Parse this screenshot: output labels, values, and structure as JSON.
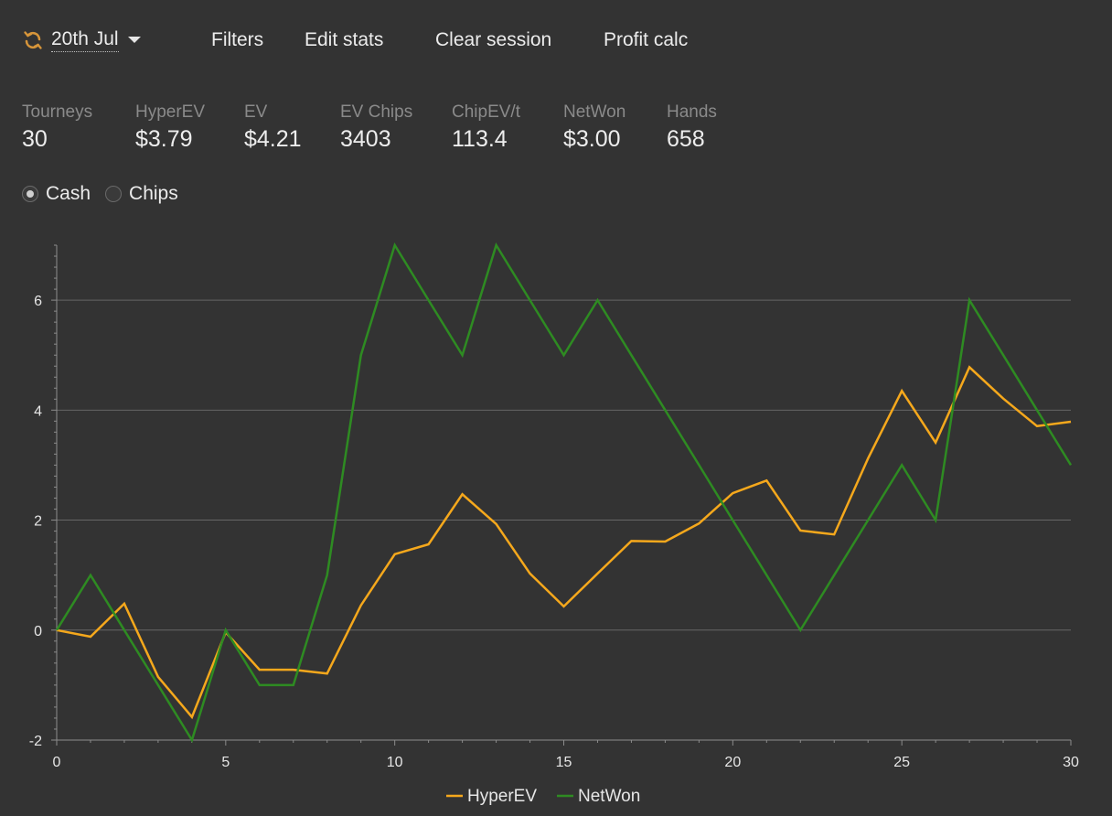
{
  "toolbar": {
    "date": "20th Jul",
    "filters": "Filters",
    "edit_stats": "Edit stats",
    "clear_session": "Clear session",
    "profit_calc": "Profit calc",
    "refresh_icon": "refresh-icon",
    "dropdown_icon": "chevron-down-icon"
  },
  "stats": [
    {
      "label": "Tourneys",
      "value": "30"
    },
    {
      "label": "HyperEV",
      "value": "$3.79"
    },
    {
      "label": "EV",
      "value": "$4.21"
    },
    {
      "label": "EV Chips",
      "value": "3403"
    },
    {
      "label": "ChipEV/t",
      "value": "113.4"
    },
    {
      "label": "NetWon",
      "value": "$3.00"
    },
    {
      "label": "Hands",
      "value": "658"
    }
  ],
  "mode": {
    "options": [
      {
        "label": "Cash",
        "selected": true
      },
      {
        "label": "Chips",
        "selected": false
      }
    ]
  },
  "colors": {
    "hyperev": "#f5a81c",
    "netwon": "#2e8b22",
    "grid": "#666666",
    "axis": "#8c8c8c",
    "text": "#e6e6e6"
  },
  "chart_data": {
    "type": "line",
    "xlim": [
      0,
      30
    ],
    "ylim": [
      -2,
      7
    ],
    "xticks": [
      0,
      5,
      10,
      15,
      20,
      25,
      30
    ],
    "yticks": [
      -2,
      0,
      2,
      4,
      6
    ],
    "legend_position": "bottom-center",
    "grid": true,
    "series": [
      {
        "name": "HyperEV",
        "color": "#f5a81c",
        "x": [
          0,
          1,
          2,
          3,
          4,
          5,
          6,
          7,
          8,
          9,
          10,
          11,
          12,
          13,
          14,
          15,
          16,
          17,
          18,
          19,
          20,
          21,
          22,
          23,
          24,
          25,
          26,
          27,
          28,
          29,
          30
        ],
        "values": [
          0,
          -0.12,
          0.48,
          -0.85,
          -1.58,
          -0.04,
          -0.72,
          -0.72,
          -0.79,
          0.45,
          1.38,
          1.56,
          2.47,
          1.93,
          1.03,
          0.43,
          1.03,
          1.62,
          1.61,
          1.94,
          2.49,
          2.72,
          1.81,
          1.74,
          3.12,
          4.35,
          3.41,
          4.78,
          4.21,
          3.71,
          3.79
        ]
      },
      {
        "name": "NetWon",
        "color": "#2e8b22",
        "x": [
          0,
          1,
          2,
          3,
          4,
          5,
          6,
          7,
          8,
          9,
          10,
          11,
          12,
          13,
          14,
          15,
          16,
          17,
          18,
          19,
          20,
          21,
          22,
          23,
          24,
          25,
          26,
          27,
          28,
          29,
          30
        ],
        "values": [
          0,
          1,
          0,
          -1,
          -2,
          0,
          -1,
          -1,
          1,
          5,
          7,
          6,
          5,
          7,
          6,
          5,
          6,
          5,
          4,
          3,
          2,
          1,
          0,
          1,
          2,
          3,
          2,
          6,
          5,
          4,
          3
        ]
      }
    ]
  }
}
